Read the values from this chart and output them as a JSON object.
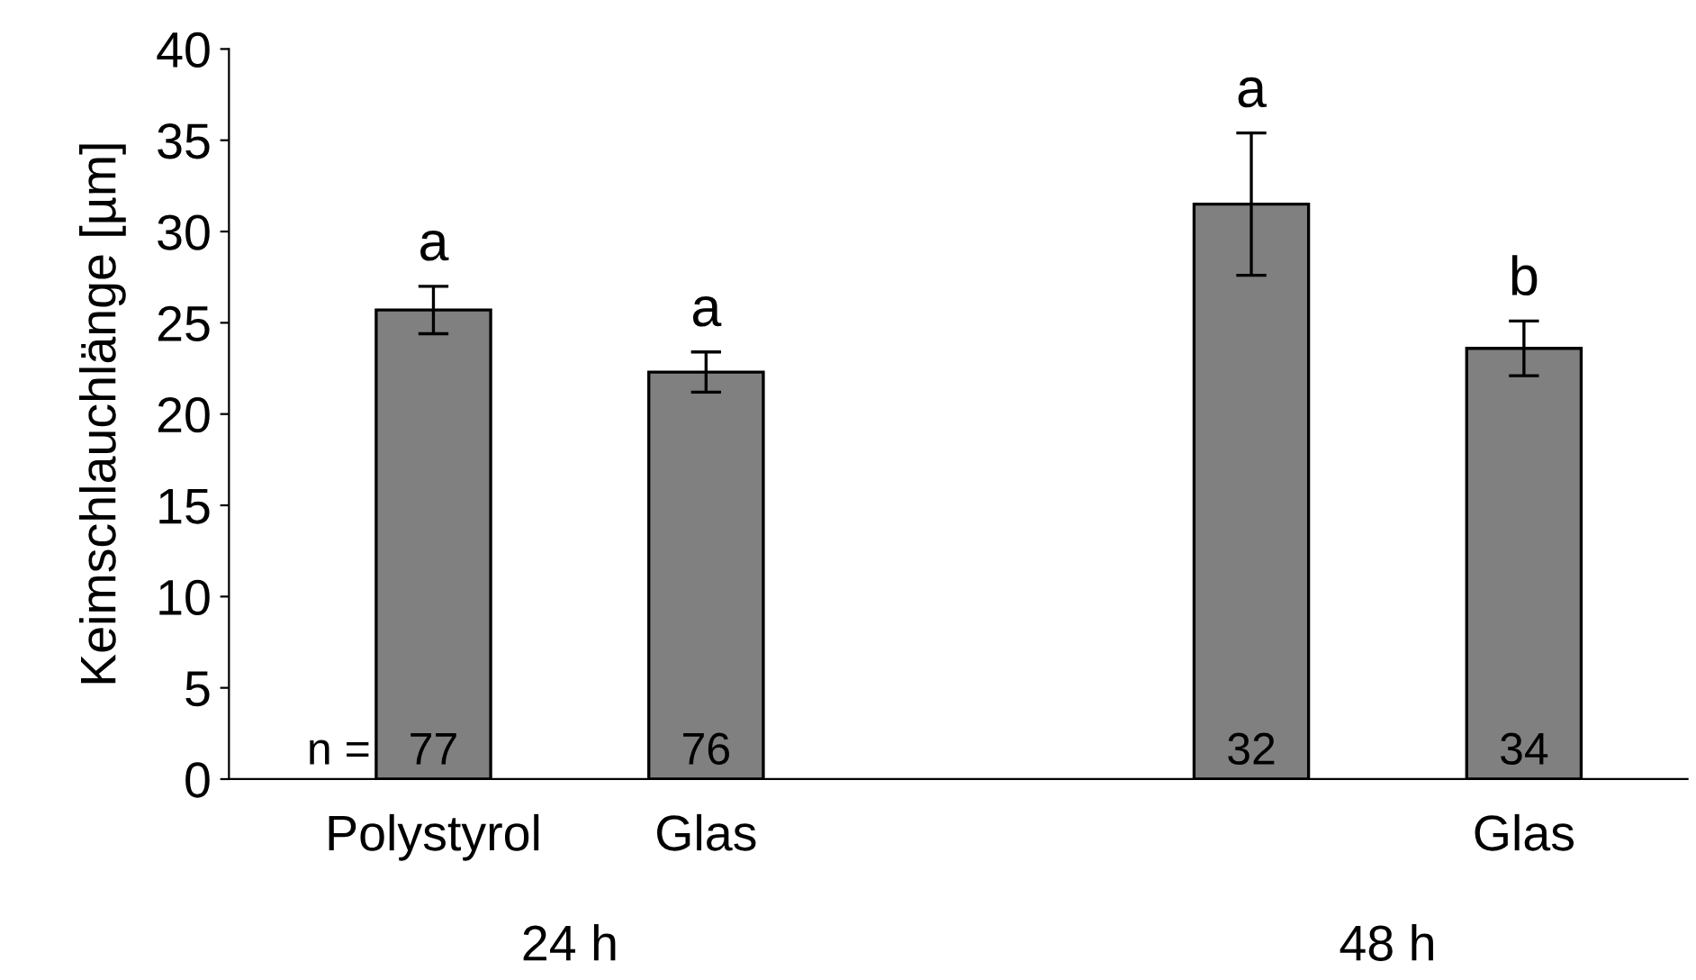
{
  "chart_data": {
    "type": "bar",
    "ylabel": "Keimschlauchlänge [µm]",
    "categories": [
      "Polystyrol",
      "Glas",
      null,
      null,
      "Glas"
    ],
    "values": [
      25.7,
      22.3,
      null,
      31.5,
      23.6
    ],
    "errors": [
      1.3,
      1.1,
      null,
      3.9,
      1.5
    ],
    "color": "#808080",
    "ylim": [
      0,
      40
    ],
    "yticks": [
      0,
      5,
      10,
      15,
      20,
      25,
      30,
      35,
      40
    ],
    "grid": false,
    "annotations": [
      "a",
      "a",
      "a",
      "b",
      "n =",
      "77",
      "76",
      "32",
      "34",
      "24 h",
      "48 h"
    ]
  }
}
